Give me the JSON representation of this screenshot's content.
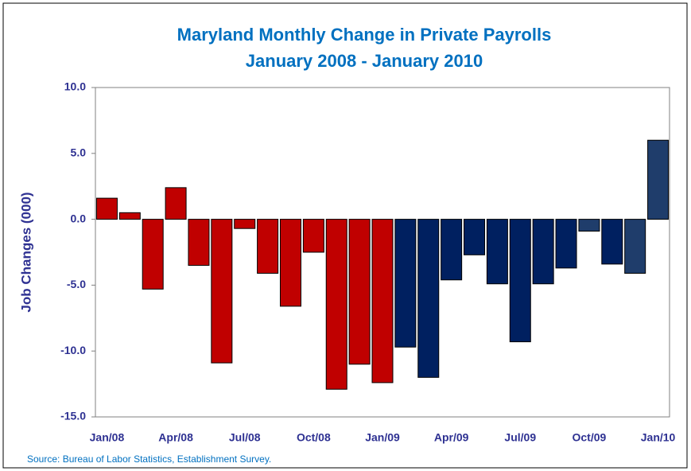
{
  "chart_data": {
    "type": "bar",
    "title": "Maryland Monthly Change in Private Payrolls",
    "subtitle": "January 2008 - January 2010",
    "y_label": "Job Changes (000)",
    "source": "Source: Bureau of Labor Statistics, Establishment Survey.",
    "categories": [
      "Jan/08",
      null,
      null,
      "Apr/08",
      null,
      null,
      "Jul/08",
      null,
      null,
      "Oct/08",
      null,
      null,
      "Jan/09",
      null,
      null,
      "Apr/09",
      null,
      null,
      "Jul/09",
      null,
      null,
      "Oct/09",
      null,
      null,
      "Jan/10"
    ],
    "values": [
      1.6,
      0.5,
      -5.3,
      2.4,
      -3.5,
      -10.9,
      -0.7,
      -4.1,
      -6.6,
      -2.5,
      -12.9,
      -11.0,
      -12.4,
      -9.7,
      -12.0,
      -4.6,
      -2.7,
      -4.9,
      -9.3,
      -4.9,
      -3.7,
      -0.9,
      -3.4,
      -4.1,
      6.0
    ],
    "colors": [
      "#c00000",
      "#c00000",
      "#c00000",
      "#c00000",
      "#c00000",
      "#c00000",
      "#c00000",
      "#c00000",
      "#c00000",
      "#c00000",
      "#c00000",
      "#c00000",
      "#c00000",
      "#002060",
      "#002060",
      "#002060",
      "#002060",
      "#002060",
      "#002060",
      "#002060",
      "#002060",
      "#1f3d6b",
      "#002060",
      "#1f3d6b",
      "#1f3d6b"
    ],
    "ylim": [
      -15,
      10
    ],
    "yticks": [
      {
        "value": -15,
        "label": "-15.0"
      },
      {
        "value": -10,
        "label": "-10.0"
      },
      {
        "value": -5,
        "label": "-5.0"
      },
      {
        "value": 0,
        "label": "0.0"
      },
      {
        "value": 5,
        "label": "5.0"
      },
      {
        "value": 10,
        "label": "10.0"
      }
    ],
    "grid": false
  }
}
